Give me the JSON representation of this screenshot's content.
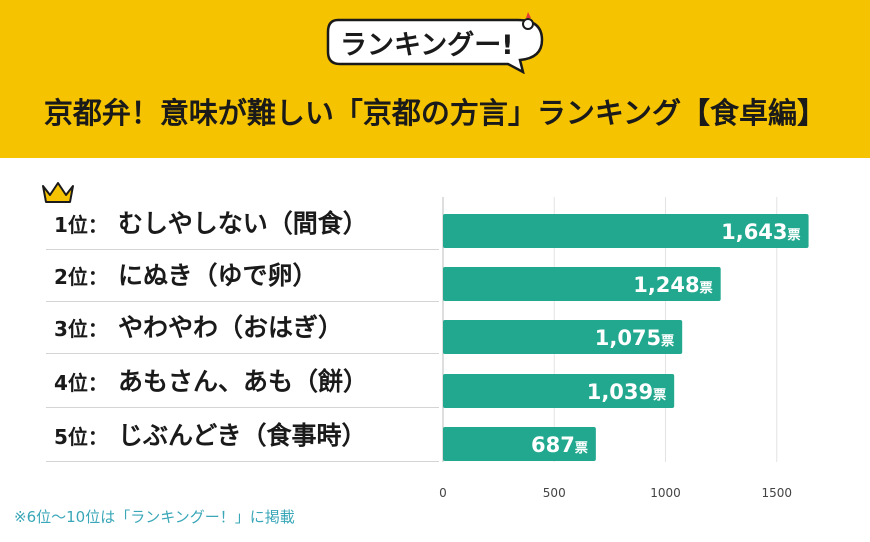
{
  "header": {
    "logo_text": "ランキングー!",
    "title": "京都弁！意味が難しい「京都の方言」ランキング【食卓編】"
  },
  "ranking": [
    {
      "rank": "1位：",
      "name": "むしやしない（間食）"
    },
    {
      "rank": "2位：",
      "name": "にぬき（ゆで卵）"
    },
    {
      "rank": "3位：",
      "name": "やわやわ（おはぎ）"
    },
    {
      "rank": "4位：",
      "name": "あもさん、あも（餅）"
    },
    {
      "rank": "5位：",
      "name": "じぶんどき（食事時）"
    }
  ],
  "footnote": "※6位〜10位は「ランキングー！」に掲載",
  "colors": {
    "bar": "#21a88e",
    "header": "#f6c300",
    "footnote": "#3aa7b8"
  },
  "chart_data": {
    "type": "bar",
    "orientation": "horizontal",
    "categories": [
      "むしやしない（間食）",
      "にぬき（ゆで卵）",
      "やわやわ（おはぎ）",
      "あもさん、あも（餅）",
      "じぶんどき（食事時）"
    ],
    "values": [
      1643,
      1248,
      1075,
      1039,
      687
    ],
    "value_labels": [
      "1,643",
      "1,248",
      "1,075",
      "1,039",
      "687"
    ],
    "unit": "票",
    "xlim": [
      0,
      1750
    ],
    "xticks": [
      0,
      500,
      1000,
      1500
    ],
    "grid": true
  }
}
